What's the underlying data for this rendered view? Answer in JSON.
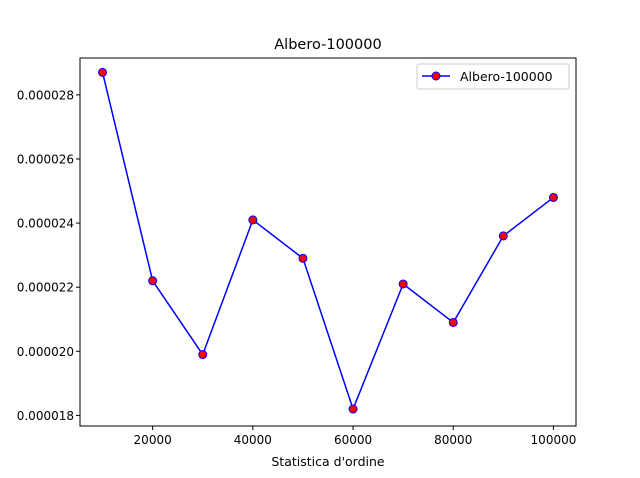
{
  "chart_data": {
    "type": "line",
    "title": "Albero-100000",
    "xlabel": "Statistica d'ordine",
    "ylabel": "",
    "x": [
      10000,
      20000,
      30000,
      40000,
      50000,
      60000,
      70000,
      80000,
      90000,
      100000
    ],
    "series": [
      {
        "name": "Albero-100000",
        "values": [
          2.87e-05,
          2.22e-05,
          1.99e-05,
          2.41e-05,
          2.29e-05,
          1.82e-05,
          2.21e-05,
          2.09e-05,
          2.36e-05,
          2.48e-05
        ],
        "line_color": "#0000ff",
        "marker_face": "#ff0000",
        "marker_edge": "#0000ff"
      }
    ],
    "xlim": [
      5500,
      104500
    ],
    "ylim": [
      1.767e-05,
      2.915e-05
    ],
    "xticks": [
      20000,
      40000,
      60000,
      80000,
      100000
    ],
    "xtick_labels": [
      "20000",
      "40000",
      "60000",
      "80000",
      "100000"
    ],
    "yticks": [
      1.8e-05,
      2e-05,
      2.2e-05,
      2.4e-05,
      2.6e-05,
      2.8e-05
    ],
    "ytick_labels": [
      "0.000018",
      "0.000020",
      "0.000022",
      "0.000024",
      "0.000026",
      "0.000028"
    ],
    "legend_position": "top-right",
    "grid": false
  }
}
